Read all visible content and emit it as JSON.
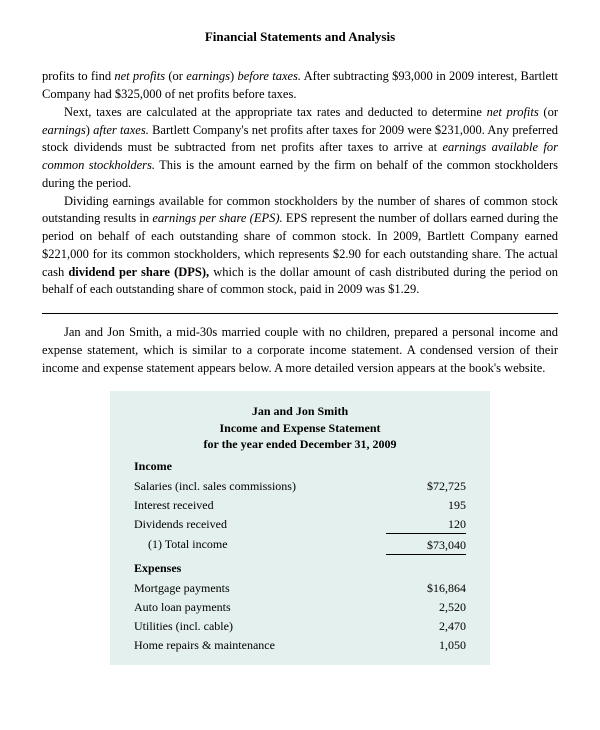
{
  "header": {
    "title": "Financial Statements and Analysis"
  },
  "para1": {
    "lead": "profits to find ",
    "i1": "net profits",
    "t1": " (or ",
    "i2": "earnings",
    "t2": ") ",
    "i3": "before taxes.",
    "t3": " After subtracting $93,000 in 2009 interest, Bartlett Company had $325,000 of net profits before taxes."
  },
  "para2": {
    "lead": "Next, taxes are calculated at the appropriate tax rates and deducted to determine ",
    "i1": "net profits",
    "t1": " (or ",
    "i2": "earnings",
    "t2": ") ",
    "i3": "after taxes.",
    "t3": " Bartlett Company's net profits after taxes for 2009 were $231,000. Any preferred stock dividends must be subtracted from net profits after taxes to arrive at ",
    "i4": "earnings available for common stockholders.",
    "t4": " This is the amount earned by the firm on behalf of the common stockholders during the period."
  },
  "para3": {
    "lead": "Dividing earnings available for common stockholders by the number of shares of common stock outstanding results in ",
    "i1": "earnings per share (EPS).",
    "t1": " EPS represent the number of dollars earned during the period on behalf of each outstanding share of common stock. In 2009, Bartlett Company earned $221,000 for its common stockholders, which represents $2.90 for each outstanding share. The actual cash ",
    "b1": "dividend per share (DPS),",
    "t2": " which is the dollar amount of cash distributed during the period on behalf of each outstanding share of common stock, paid in 2009 was $1.29."
  },
  "example": {
    "text": "Jan and Jon Smith, a mid-30s married couple with no children, prepared a personal income and expense statement, which is similar to a corporate income statement. A condensed version of their income and expense statement appears below. A more detailed version appears at the book's website."
  },
  "statement": {
    "title_l1": "Jan and Jon Smith",
    "title_l2": "Income and Expense Statement",
    "title_l3": "for the year ended December 31, 2009",
    "income_label": "Income",
    "expenses_label": "Expenses",
    "income_rows": [
      {
        "label": "Salaries (incl. sales commissions)",
        "value": "$72,725"
      },
      {
        "label": "Interest received",
        "value": "195"
      },
      {
        "label": "Dividends received",
        "value": "120"
      }
    ],
    "income_total": {
      "label": "(1) Total income",
      "value": "$73,040"
    },
    "expense_rows": [
      {
        "label": "Mortgage payments",
        "value": "$16,864"
      },
      {
        "label": "Auto loan payments",
        "value": "2,520"
      },
      {
        "label": "Utilities (incl. cable)",
        "value": "2,470"
      },
      {
        "label": "Home repairs & maintenance",
        "value": "1,050"
      }
    ]
  },
  "colors": {
    "page_bg": "#ffffff",
    "text": "#000000",
    "statement_bg": "#e4f0ed"
  }
}
